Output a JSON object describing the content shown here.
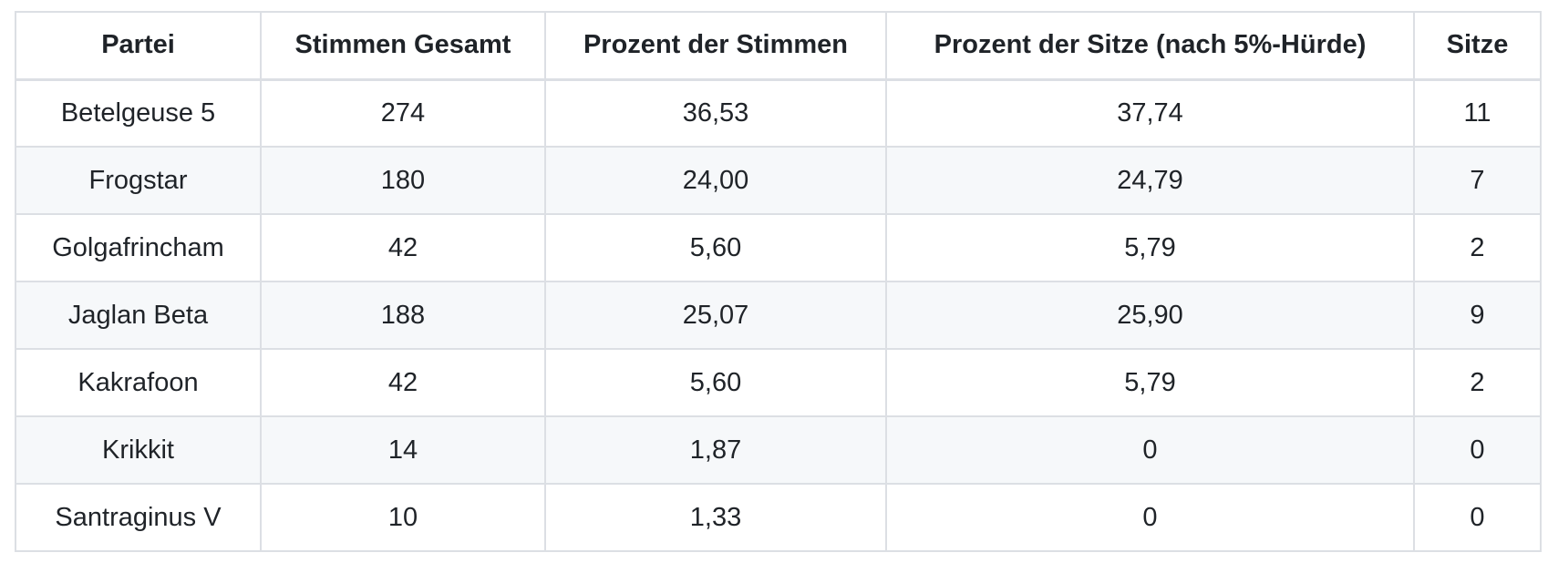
{
  "colors": {
    "border": "#dcdfe4",
    "stripe": "#f6f8fa",
    "text": "#1f2328",
    "background": "#ffffff"
  },
  "table": {
    "columns": [
      {
        "label": "Partei"
      },
      {
        "label": "Stimmen Gesamt"
      },
      {
        "label": "Prozent der Stimmen"
      },
      {
        "label": "Prozent der Sitze (nach 5%-Hürde)"
      },
      {
        "label": "Sitze"
      }
    ],
    "rows": [
      {
        "cells": [
          "Betelgeuse 5",
          "274",
          "36,53",
          "37,74",
          "11"
        ]
      },
      {
        "cells": [
          "Frogstar",
          "180",
          "24,00",
          "24,79",
          "7"
        ]
      },
      {
        "cells": [
          "Golgafrincham",
          "42",
          "5,60",
          "5,79",
          "2"
        ]
      },
      {
        "cells": [
          "Jaglan Beta",
          "188",
          "25,07",
          "25,90",
          "9"
        ]
      },
      {
        "cells": [
          "Kakrafoon",
          "42",
          "5,60",
          "5,79",
          "2"
        ]
      },
      {
        "cells": [
          "Krikkit",
          "14",
          "1,87",
          "0",
          "0"
        ]
      },
      {
        "cells": [
          "Santraginus V",
          "10",
          "1,33",
          "0",
          "0"
        ]
      }
    ]
  }
}
